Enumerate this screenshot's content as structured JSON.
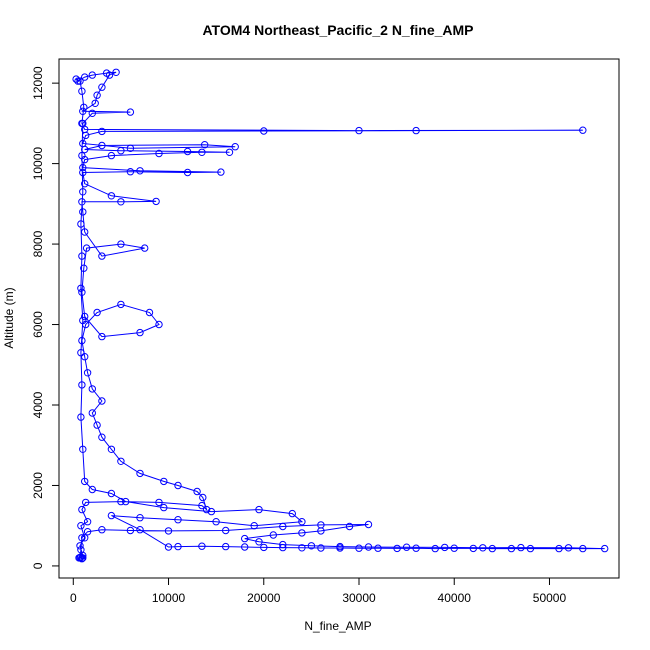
{
  "chart_data": {
    "type": "scatter",
    "title": "ATOM4 Northeast_Pacific_2 N_fine_AMP",
    "xlabel": "N_fine_AMP",
    "ylabel": "Altitude (m)",
    "xlim": [
      -1500,
      57300
    ],
    "ylim": [
      -300,
      12600
    ],
    "x_ticks": [
      0,
      10000,
      20000,
      30000,
      40000,
      50000
    ],
    "x_tick_labels": [
      "0",
      "10000",
      "20000",
      "30000",
      "40000",
      "50000"
    ],
    "y_ticks": [
      0,
      2000,
      4000,
      6000,
      8000,
      10000,
      12000
    ],
    "y_tick_labels": [
      "0",
      "2000",
      "4000",
      "6000",
      "8000",
      "10000",
      "12000"
    ],
    "grid": false,
    "legend": "none",
    "series": [
      {
        "color": "#0000ff",
        "marker": "open-circle",
        "connected": true,
        "points": [
          [
            600,
            200
          ],
          [
            900,
            190
          ],
          [
            800,
            220
          ],
          [
            1000,
            260
          ],
          [
            700,
            500
          ],
          [
            1200,
            700
          ],
          [
            800,
            1000
          ],
          [
            1500,
            1100
          ],
          [
            900,
            1400
          ],
          [
            1300,
            1580
          ],
          [
            5000,
            1600
          ],
          [
            9000,
            1580
          ],
          [
            13500,
            1500
          ],
          [
            14000,
            1400
          ],
          [
            13600,
            1700
          ],
          [
            13000,
            1850
          ],
          [
            11000,
            2000
          ],
          [
            9500,
            2100
          ],
          [
            7000,
            2300
          ],
          [
            5000,
            2600
          ],
          [
            4000,
            2900
          ],
          [
            3000,
            3200
          ],
          [
            2500,
            3500
          ],
          [
            2000,
            3800
          ],
          [
            3000,
            4100
          ],
          [
            2000,
            4400
          ],
          [
            1500,
            4800
          ],
          [
            1200,
            5200
          ],
          [
            900,
            5600
          ],
          [
            1300,
            6000
          ],
          [
            2500,
            6300
          ],
          [
            5000,
            6500
          ],
          [
            8000,
            6300
          ],
          [
            9000,
            6000
          ],
          [
            7000,
            5800
          ],
          [
            3000,
            5700
          ],
          [
            1200,
            6200
          ],
          [
            900,
            6800
          ],
          [
            1100,
            7400
          ],
          [
            1400,
            7900
          ],
          [
            5000,
            8000
          ],
          [
            7500,
            7900
          ],
          [
            3000,
            7700
          ],
          [
            1200,
            8300
          ],
          [
            1000,
            8800
          ],
          [
            900,
            9050
          ],
          [
            5000,
            9050
          ],
          [
            8700,
            9060
          ],
          [
            4000,
            9200
          ],
          [
            1200,
            9500
          ],
          [
            1000,
            9780
          ],
          [
            6000,
            9800
          ],
          [
            12000,
            9780
          ],
          [
            15500,
            9790
          ],
          [
            7000,
            9820
          ],
          [
            1000,
            9900
          ],
          [
            1200,
            10100
          ],
          [
            4000,
            10200
          ],
          [
            9000,
            10250
          ],
          [
            13500,
            10280
          ],
          [
            16400,
            10280
          ],
          [
            12000,
            10300
          ],
          [
            5000,
            10320
          ],
          [
            1200,
            10350
          ],
          [
            3000,
            10450
          ],
          [
            13800,
            10470
          ],
          [
            17000,
            10420
          ],
          [
            6000,
            10380
          ],
          [
            1000,
            10500
          ],
          [
            1300,
            10700
          ],
          [
            3000,
            10800
          ],
          [
            20000,
            10810
          ],
          [
            36000,
            10820
          ],
          [
            53500,
            10830
          ],
          [
            30000,
            10820
          ],
          [
            1200,
            10850
          ],
          [
            900,
            11000
          ],
          [
            1100,
            11400
          ],
          [
            900,
            11800
          ],
          [
            700,
            12050
          ],
          [
            300,
            12100
          ],
          [
            500,
            12050
          ],
          [
            1200,
            12150
          ],
          [
            2000,
            12200
          ],
          [
            3500,
            12250
          ],
          [
            4500,
            12270
          ],
          [
            3800,
            12200
          ],
          [
            3000,
            11900
          ],
          [
            2500,
            11700
          ],
          [
            2300,
            11500
          ],
          [
            1000,
            11300
          ],
          [
            6000,
            11280
          ],
          [
            2000,
            11250
          ],
          [
            1000,
            11000
          ],
          [
            900,
            10200
          ],
          [
            1000,
            9300
          ],
          [
            800,
            8500
          ],
          [
            900,
            7700
          ],
          [
            800,
            6900
          ],
          [
            1000,
            6100
          ],
          [
            800,
            5300
          ],
          [
            900,
            4500
          ],
          [
            800,
            3700
          ],
          [
            1000,
            2900
          ],
          [
            1200,
            2100
          ],
          [
            2000,
            1900
          ],
          [
            4000,
            1800
          ],
          [
            5500,
            1600
          ],
          [
            9500,
            1450
          ],
          [
            14500,
            1350
          ],
          [
            19500,
            1400
          ],
          [
            23000,
            1300
          ],
          [
            24000,
            1100
          ],
          [
            19000,
            1000
          ],
          [
            15000,
            1100
          ],
          [
            11000,
            1150
          ],
          [
            7000,
            1200
          ],
          [
            4000,
            1250
          ],
          [
            7000,
            900
          ],
          [
            10000,
            470
          ],
          [
            11000,
            480
          ],
          [
            13500,
            490
          ],
          [
            16000,
            480
          ],
          [
            18000,
            470
          ],
          [
            20000,
            460
          ],
          [
            22000,
            455
          ],
          [
            24000,
            450
          ],
          [
            26000,
            445
          ],
          [
            28000,
            445
          ],
          [
            30000,
            440
          ],
          [
            32000,
            440
          ],
          [
            34000,
            435
          ],
          [
            36000,
            440
          ],
          [
            38000,
            430
          ],
          [
            40000,
            440
          ],
          [
            42000,
            435
          ],
          [
            44000,
            430
          ],
          [
            46000,
            430
          ],
          [
            48000,
            430
          ],
          [
            51000,
            430
          ],
          [
            53500,
            430
          ],
          [
            55800,
            430
          ],
          [
            52000,
            450
          ],
          [
            47000,
            455
          ],
          [
            43000,
            450
          ],
          [
            39000,
            460
          ],
          [
            35000,
            465
          ],
          [
            31000,
            470
          ],
          [
            28000,
            480
          ],
          [
            25000,
            500
          ],
          [
            22000,
            530
          ],
          [
            19500,
            600
          ],
          [
            18000,
            680
          ],
          [
            21000,
            770
          ],
          [
            24000,
            820
          ],
          [
            26000,
            870
          ],
          [
            29000,
            980
          ],
          [
            31000,
            1030
          ],
          [
            26000,
            1020
          ],
          [
            22000,
            980
          ],
          [
            16000,
            880
          ],
          [
            10000,
            870
          ],
          [
            6000,
            880
          ],
          [
            3000,
            900
          ],
          [
            1500,
            850
          ],
          [
            900,
            700
          ],
          [
            800,
            400
          ],
          [
            700,
            210
          ],
          [
            900,
            180
          ],
          [
            1000,
            200
          ]
        ]
      }
    ]
  }
}
